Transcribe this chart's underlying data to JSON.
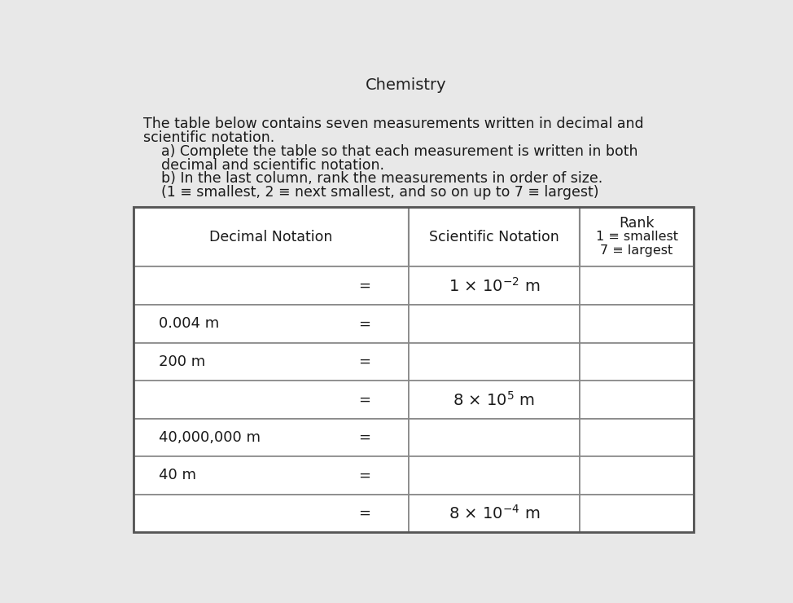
{
  "chemistry_label": "Chemistry",
  "title_line1": "The table below contains seven measurements written in decimal and",
  "title_line2": "scientific notation.",
  "instruction_a1": "    a) Complete the table so that each measurement is written in both",
  "instruction_a2": "    decimal and scientific notation.",
  "instruction_b1": "    b) In the last column, rank the measurements in order of size.",
  "instruction_b2": "    (1 ≡ smallest, 2 ≡ next smallest, and so on up to 7 ≡ largest)",
  "header_col1": "Decimal Notation",
  "header_col2": "Scientific Notation",
  "header_col3_line1": "Rank",
  "header_col3_line2": "1 ≡ smallest",
  "header_col3_line3": "7 ≡ largest",
  "rows": [
    {
      "decimal": "",
      "scientific_base": "1 × 10",
      "scientific_exp": "-2",
      "scientific_unit": " m",
      "rank": ""
    },
    {
      "decimal": "0.004 m",
      "scientific_base": "",
      "scientific_exp": "",
      "scientific_unit": "",
      "rank": ""
    },
    {
      "decimal": "200 m",
      "scientific_base": "",
      "scientific_exp": "",
      "scientific_unit": "",
      "rank": ""
    },
    {
      "decimal": "",
      "scientific_base": "8 × 10",
      "scientific_exp": "5",
      "scientific_unit": " m",
      "rank": ""
    },
    {
      "decimal": "40,000,000 m",
      "scientific_base": "",
      "scientific_exp": "",
      "scientific_unit": "",
      "rank": ""
    },
    {
      "decimal": "40 m",
      "scientific_base": "",
      "scientific_exp": "",
      "scientific_unit": "",
      "rank": ""
    },
    {
      "decimal": "",
      "scientific_base": "8 × 10",
      "scientific_exp": "-4",
      "scientific_unit": " m",
      "rank": ""
    }
  ],
  "bg_color": "#e8e8e8",
  "cell_color": "#ffffff",
  "header_cell_color": "#ffffff",
  "border_color": "#888888",
  "text_color": "#1a1a1a",
  "title_fontsize": 12.5,
  "table_fontsize": 13.0,
  "header_fontsize": 12.5
}
